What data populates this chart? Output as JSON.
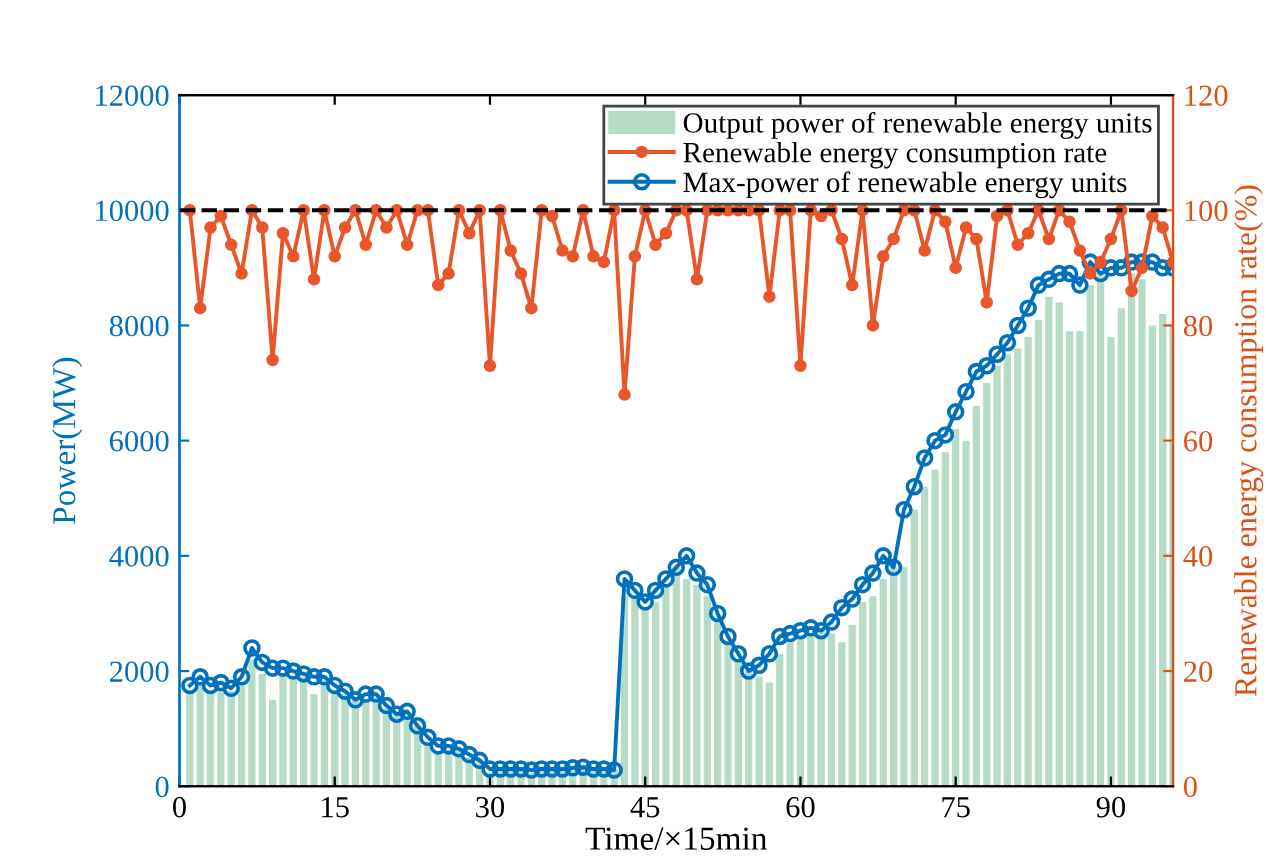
{
  "chart_data": {
    "type": "bar",
    "xlabel": "Time/×15min",
    "ylabel": "Power(MW)",
    "y2label": "Renewable energy consumption rate(%)",
    "x": [
      1,
      2,
      3,
      4,
      5,
      6,
      7,
      8,
      9,
      10,
      11,
      12,
      13,
      14,
      15,
      16,
      17,
      18,
      19,
      20,
      21,
      22,
      23,
      24,
      25,
      26,
      27,
      28,
      29,
      30,
      31,
      32,
      33,
      34,
      35,
      36,
      37,
      38,
      39,
      40,
      41,
      42,
      43,
      44,
      45,
      46,
      47,
      48,
      49,
      50,
      51,
      52,
      53,
      54,
      55,
      56,
      57,
      58,
      59,
      60,
      61,
      62,
      63,
      64,
      65,
      66,
      67,
      68,
      69,
      70,
      71,
      72,
      73,
      74,
      75,
      76,
      77,
      78,
      79,
      80,
      81,
      82,
      83,
      84,
      85,
      86,
      87,
      88,
      89,
      90,
      91,
      92,
      93,
      94,
      95,
      96
    ],
    "xlim": [
      0,
      96
    ],
    "xticks": [
      0,
      15,
      30,
      45,
      60,
      75,
      90
    ],
    "ylim": [
      0,
      12000
    ],
    "yticks": [
      0,
      2000,
      4000,
      6000,
      8000,
      10000,
      12000
    ],
    "y2lim": [
      0,
      120
    ],
    "y2ticks": [
      0,
      20,
      40,
      60,
      80,
      100,
      120
    ],
    "legend": "top right",
    "grid": false,
    "ref_lines": [
      {
        "axis": "y2",
        "value": 100,
        "color": "#000000",
        "line_style": "dashed"
      }
    ],
    "series": [
      {
        "name": "Output power of renewable energy units",
        "color": "#b7dcc6",
        "values": [
          1650,
          1800,
          1650,
          1700,
          1650,
          1750,
          2200,
          1950,
          1500,
          1950,
          1850,
          1900,
          1600,
          1850,
          1600,
          1600,
          1500,
          1500,
          1550,
          1350,
          1250,
          1200,
          1050,
          750,
          600,
          650,
          650,
          500,
          450,
          220,
          300,
          280,
          270,
          230,
          300,
          300,
          280,
          290,
          330,
          280,
          270,
          290,
          3300,
          3300,
          3100,
          3200,
          3500,
          3800,
          3600,
          3500,
          3300,
          2900,
          2500,
          2200,
          2000,
          1900,
          1800,
          2300,
          2500,
          2600,
          2650,
          2700,
          2650,
          2500,
          2800,
          3200,
          3300,
          3600,
          3800,
          3800,
          4800,
          5200,
          5500,
          5800,
          6200,
          6000,
          6600,
          7000,
          7300,
          7500,
          7600,
          7800,
          8100,
          8500,
          8400,
          7900,
          7900,
          8700,
          8900,
          7800,
          8300,
          8900,
          8800,
          8000,
          8200,
          8000
        ]
      },
      {
        "name": "Renewable energy consumption rate",
        "type": "line",
        "axis": "y2",
        "color": "#e8562a",
        "marker": "circle",
        "values": [
          100,
          83,
          97,
          99,
          94,
          89,
          100,
          97,
          74,
          96,
          92,
          100,
          88,
          100,
          92,
          97,
          100,
          94,
          100,
          97,
          100,
          94,
          100,
          100,
          87,
          89,
          100,
          96,
          100,
          73,
          100,
          93,
          89,
          83,
          100,
          99,
          93,
          92,
          100,
          92,
          91,
          100,
          68,
          92,
          100,
          94,
          96,
          100,
          100,
          88,
          100,
          100,
          100,
          100,
          100,
          100,
          85,
          100,
          100,
          73,
          100,
          99,
          100,
          95,
          87,
          100,
          80,
          92,
          95,
          100,
          100,
          93,
          100,
          98,
          90,
          97,
          95,
          84,
          99,
          100,
          94,
          96,
          100,
          95,
          100,
          98,
          93,
          89,
          91,
          95,
          100,
          86,
          90,
          99,
          97,
          91
        ]
      },
      {
        "name": "Max-power of renewable energy units",
        "type": "line",
        "color": "#0072bd",
        "marker": "circle",
        "values": [
          1750,
          1900,
          1750,
          1800,
          1700,
          1900,
          2400,
          2150,
          2050,
          2050,
          2000,
          1950,
          1900,
          1900,
          1750,
          1650,
          1500,
          1600,
          1600,
          1400,
          1250,
          1300,
          1050,
          850,
          700,
          700,
          650,
          550,
          450,
          300,
          300,
          300,
          300,
          280,
          300,
          300,
          300,
          320,
          330,
          300,
          300,
          280,
          3600,
          3400,
          3200,
          3400,
          3600,
          3800,
          4000,
          3700,
          3500,
          3000,
          2600,
          2300,
          2000,
          2100,
          2300,
          2600,
          2650,
          2700,
          2750,
          2700,
          2850,
          3100,
          3250,
          3500,
          3700,
          4000,
          3800,
          4800,
          5200,
          5700,
          6000,
          6100,
          6500,
          6850,
          7200,
          7300,
          7500,
          7700,
          8000,
          8300,
          8700,
          8800,
          8900,
          8900,
          8700,
          9100,
          8900,
          9000,
          9000,
          9100,
          9100,
          9100,
          9000,
          9000
        ]
      }
    ]
  }
}
